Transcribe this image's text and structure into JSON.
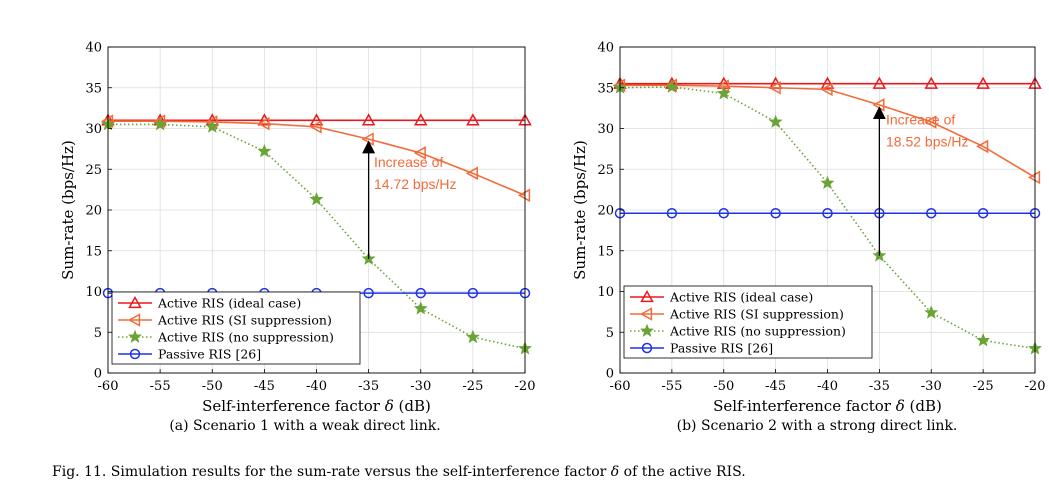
{
  "figure_caption": {
    "prefix": "Fig. 11.",
    "text_before": "Simulation results for the sum-rate versus the self-interference factor ",
    "symbol": "δ",
    "text_after": " of the active RIS."
  },
  "chart_data": [
    {
      "type": "line",
      "caption": "(a) Scenario 1 with a weak direct link.",
      "xlabel": "Self-interference factor",
      "xlabel_symbol": "δ",
      "xlabel_unit": "(dB)",
      "ylabel": "Sum-rate (bps/Hz)",
      "xlim": [
        -60,
        -20
      ],
      "ylim": [
        0,
        40
      ],
      "xticks": [
        -60,
        -55,
        -50,
        -45,
        -40,
        -35,
        -30,
        -25,
        -20
      ],
      "yticks": [
        0,
        5,
        10,
        15,
        20,
        25,
        30,
        35,
        40
      ],
      "grid": true,
      "legend_position": "bottom-left",
      "annotation": {
        "line1": "Increase of",
        "line2": "14.72 bps/Hz",
        "x": -35,
        "y_from": 14.0,
        "y_to": 28.72
      },
      "x": [
        -60,
        -55,
        -50,
        -45,
        -40,
        -35,
        -30,
        -25,
        -20
      ],
      "series": [
        {
          "name": "Active RIS (ideal case)",
          "color": "#e8191d",
          "marker": "triangle-up",
          "style": "solid",
          "values": [
            31.0,
            31.0,
            31.0,
            31.0,
            31.0,
            31.0,
            31.0,
            31.0,
            31.0
          ]
        },
        {
          "name": "Active RIS (SI suppression)",
          "color": "#f26b3a",
          "marker": "triangle-left",
          "style": "solid",
          "values": [
            30.9,
            30.9,
            30.8,
            30.6,
            30.2,
            28.7,
            27.0,
            24.5,
            21.8
          ]
        },
        {
          "name": "Active RIS (no suppression)",
          "color": "#6aa434",
          "marker": "star",
          "style": "dotted",
          "values": [
            30.5,
            30.5,
            30.2,
            27.2,
            21.3,
            14.0,
            7.9,
            4.4,
            3.0
          ]
        },
        {
          "name": "Passive RIS [26]",
          "color": "#1f33e6",
          "marker": "circle",
          "style": "solid",
          "values": [
            9.8,
            9.8,
            9.8,
            9.8,
            9.8,
            9.8,
            9.8,
            9.8,
            9.8
          ]
        }
      ]
    },
    {
      "type": "line",
      "caption": "(b) Scenario 2 with a strong direct link.",
      "xlabel": "Self-interference factor",
      "xlabel_symbol": "δ",
      "xlabel_unit": "(dB)",
      "ylabel": "Sum-rate (bps/Hz)",
      "xlim": [
        -60,
        -20
      ],
      "ylim": [
        0,
        40
      ],
      "xticks": [
        -60,
        -55,
        -50,
        -45,
        -40,
        -35,
        -30,
        -25,
        -20
      ],
      "yticks": [
        0,
        5,
        10,
        15,
        20,
        25,
        30,
        35,
        40
      ],
      "grid": true,
      "legend_position": "bottom-left",
      "annotation": {
        "line1": "Increase of",
        "line2": "18.52 bps/Hz",
        "x": -35,
        "y_from": 14.4,
        "y_to": 32.92
      },
      "x": [
        -60,
        -55,
        -50,
        -45,
        -40,
        -35,
        -30,
        -25,
        -20
      ],
      "series": [
        {
          "name": "Active RIS (ideal case)",
          "color": "#e8191d",
          "marker": "triangle-up",
          "style": "solid",
          "values": [
            35.5,
            35.5,
            35.5,
            35.5,
            35.5,
            35.5,
            35.5,
            35.5,
            35.5
          ]
        },
        {
          "name": "Active RIS (SI suppression)",
          "color": "#f26b3a",
          "marker": "triangle-left",
          "style": "solid",
          "values": [
            35.3,
            35.3,
            35.2,
            35.0,
            34.8,
            32.9,
            30.8,
            27.8,
            24.0
          ]
        },
        {
          "name": "Active RIS (no suppression)",
          "color": "#6aa434",
          "marker": "star",
          "style": "dotted",
          "values": [
            35.0,
            35.1,
            34.3,
            30.8,
            23.3,
            14.4,
            7.4,
            4.0,
            3.0
          ]
        },
        {
          "name": "Passive RIS [26]",
          "color": "#1f33e6",
          "marker": "circle",
          "style": "solid",
          "values": [
            19.6,
            19.6,
            19.6,
            19.6,
            19.6,
            19.6,
            19.6,
            19.6,
            19.6
          ]
        }
      ]
    }
  ]
}
